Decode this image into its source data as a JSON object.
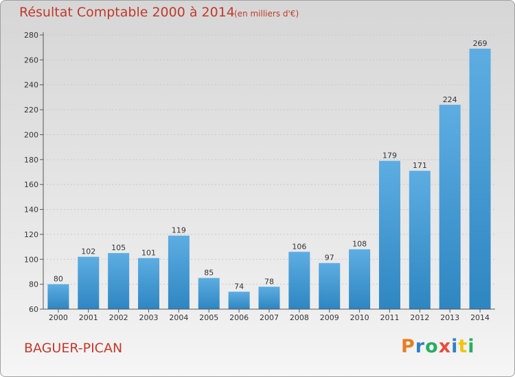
{
  "title": "Résultat Comptable 2000 à 2014",
  "subtitle": "(en milliers d'€)",
  "commune": "BAGUER-PICAN",
  "logo": {
    "letters": [
      "P",
      "r",
      "o",
      "x",
      "i",
      "t",
      "i"
    ],
    "colors": [
      "#e67e22",
      "#2f80c8",
      "#27ae60",
      "#e74c3c",
      "#2f80c8",
      "#f1c40f",
      "#27ae60"
    ]
  },
  "colors": {
    "accent": "#c0392b",
    "bar_light": "#5dade2",
    "bar_dark": "#2e86c1",
    "axis": "#555555",
    "grid": "#c8c8c8"
  },
  "chart_data": {
    "type": "bar",
    "title": "Résultat Comptable 2000 à 2014",
    "subtitle": "(en milliers d'€)",
    "categories": [
      "2000",
      "2001",
      "2002",
      "2003",
      "2004",
      "2005",
      "2006",
      "2007",
      "2008",
      "2009",
      "2010",
      "2011",
      "2012",
      "2013",
      "2014"
    ],
    "values": [
      80,
      102,
      105,
      101,
      119,
      85,
      74,
      78,
      106,
      97,
      108,
      179,
      171,
      224,
      269
    ],
    "ylim": [
      60,
      280
    ],
    "yticks": [
      60,
      80,
      100,
      120,
      140,
      160,
      180,
      200,
      220,
      240,
      260,
      280
    ],
    "grid": true,
    "legend": "none"
  }
}
